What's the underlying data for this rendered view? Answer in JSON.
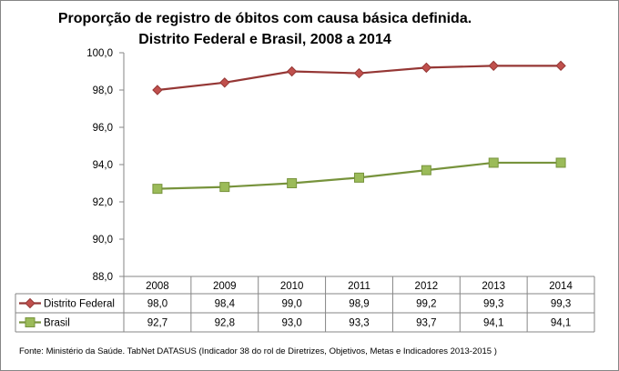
{
  "chart_data": {
    "type": "line",
    "title": [
      "Proporção de registro de óbitos com causa básica definida.",
      "Distrito Federal e Brasil, 2008 a 2014"
    ],
    "categories": [
      "2008",
      "2009",
      "2010",
      "2011",
      "2012",
      "2013",
      "2014"
    ],
    "series": [
      {
        "name": "Distrito Federal",
        "values": [
          98.0,
          98.4,
          99.0,
          98.9,
          99.2,
          99.3,
          99.3
        ],
        "labels": [
          "98,0",
          "98,4",
          "99,0",
          "98,9",
          "99,2",
          "99,3",
          "99,3"
        ],
        "color": "#953735",
        "marker_color": "#c0504d",
        "marker": "diamond"
      },
      {
        "name": "Brasil",
        "values": [
          92.7,
          92.8,
          93.0,
          93.3,
          93.7,
          94.1,
          94.1
        ],
        "labels": [
          "92,7",
          "92,8",
          "93,0",
          "93,3",
          "93,7",
          "94,1",
          "94,1"
        ],
        "color": "#77933c",
        "marker_color": "#9bbb59",
        "marker": "square"
      }
    ],
    "ylim": [
      88,
      100
    ],
    "yticks": [
      100,
      98,
      96,
      94,
      92,
      90,
      88
    ],
    "ytick_labels": [
      "100,0",
      "98,0",
      "96,0",
      "94,0",
      "92,0",
      "90,0",
      "88,0"
    ],
    "legend": "data-table",
    "grid": false
  },
  "source": "Fonte: Ministério da Saúde. TabNet DATASUS (Indicador 38 do rol de Diretrizes, Objetivos, Metas e Indicadores 2013-2015 )"
}
